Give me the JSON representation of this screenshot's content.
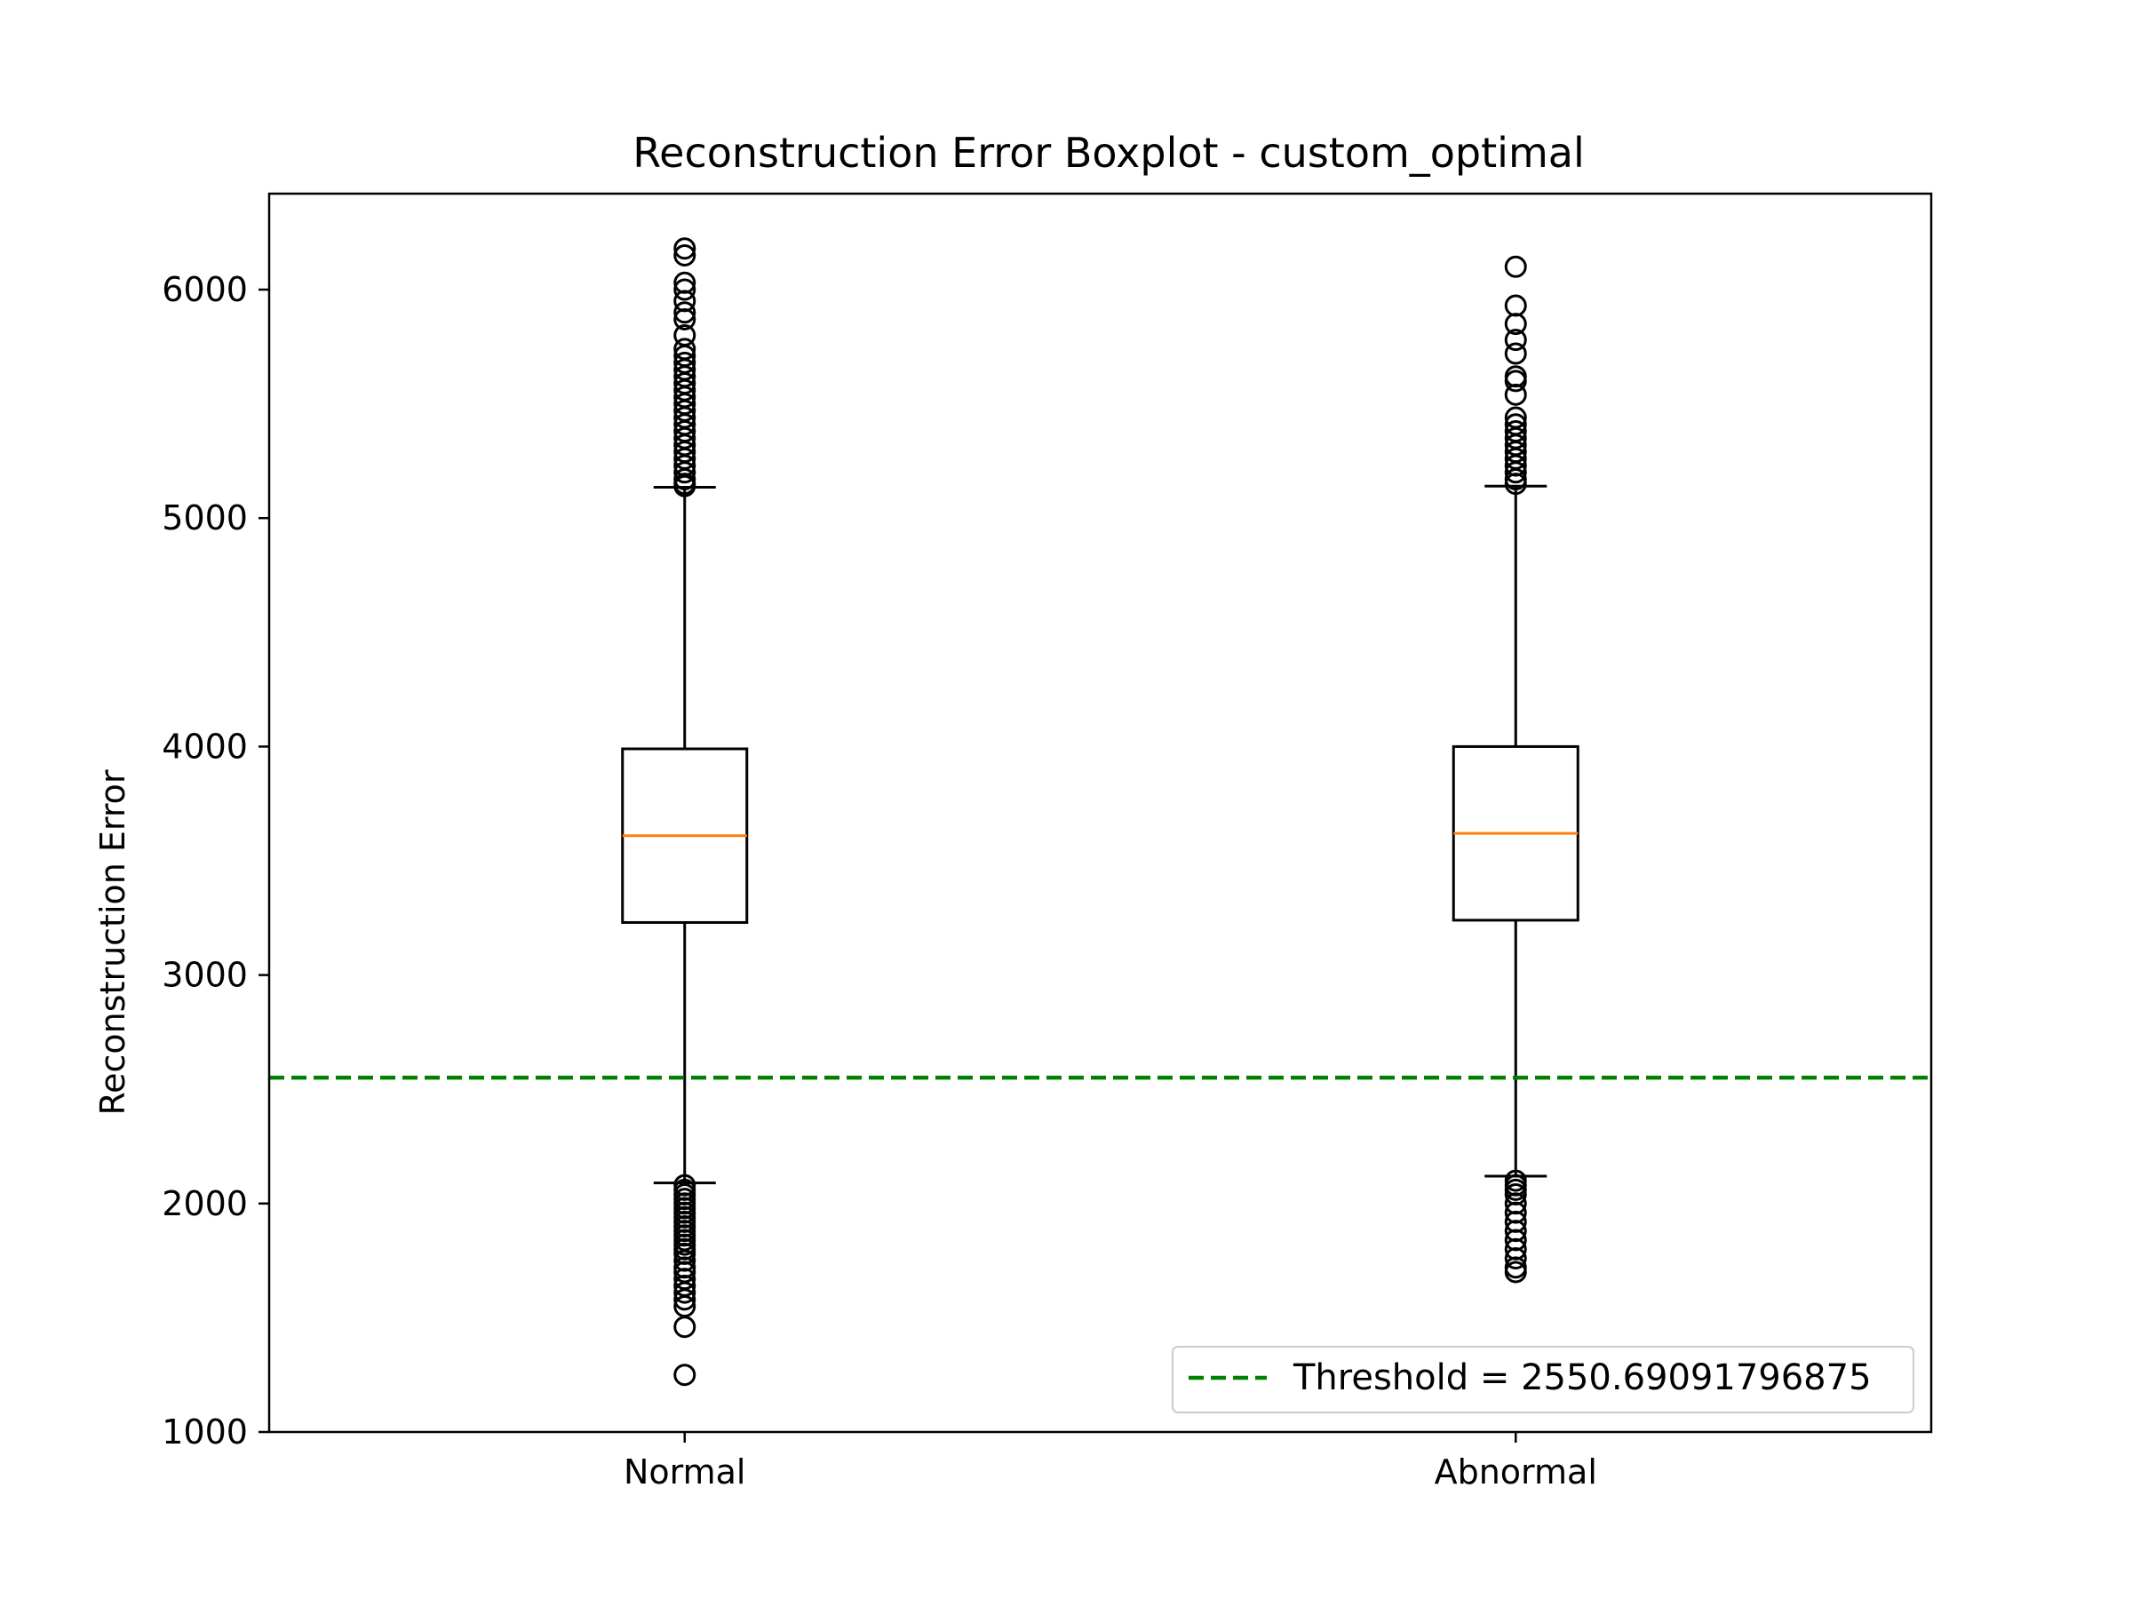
{
  "chart_data": {
    "type": "boxplot",
    "title": "Reconstruction Error Boxplot - custom_optimal",
    "xlabel": "",
    "ylabel": "Reconstruction Error",
    "ylim": [
      1000,
      6420
    ],
    "yticks": [
      1000,
      2000,
      3000,
      4000,
      5000,
      6000
    ],
    "categories": [
      "Normal",
      "Abnormal"
    ],
    "boxes": [
      {
        "label": "Normal",
        "whisker_low": 2090,
        "q1": 3230,
        "median": 3610,
        "q3": 3990,
        "whisker_high": 5135,
        "outliers_high": [
          5140,
          5150,
          5170,
          5200,
          5230,
          5260,
          5290,
          5320,
          5350,
          5380,
          5410,
          5440,
          5470,
          5500,
          5530,
          5560,
          5590,
          5620,
          5650,
          5680,
          5710,
          5740,
          5800,
          5870,
          5900,
          5950,
          6000,
          6030,
          6150,
          6180
        ],
        "outliers_low": [
          2080,
          2060,
          2040,
          2020,
          2000,
          1980,
          1960,
          1940,
          1920,
          1900,
          1880,
          1860,
          1840,
          1820,
          1800,
          1780,
          1750,
          1720,
          1700,
          1670,
          1640,
          1610,
          1580,
          1550,
          1460,
          1250
        ]
      },
      {
        "label": "Abnormal",
        "whisker_low": 2120,
        "q1": 3240,
        "median": 3620,
        "q3": 4000,
        "whisker_high": 5140,
        "outliers_high": [
          5150,
          5170,
          5200,
          5230,
          5260,
          5290,
          5320,
          5350,
          5380,
          5410,
          5440,
          5540,
          5600,
          5620,
          5720,
          5780,
          5850,
          5930,
          6100
        ],
        "outliers_low": [
          2100,
          2080,
          2060,
          2040,
          2000,
          1960,
          1920,
          1880,
          1840,
          1800,
          1760,
          1720,
          1700
        ]
      }
    ],
    "threshold": {
      "value": 2550.69091796875,
      "color": "#008000",
      "style": "dashed"
    },
    "legend": {
      "position": "lower right",
      "entries": [
        "Threshold = 2550.69091796875"
      ]
    },
    "colors": {
      "median": "#ff7f0e",
      "box": "#000000",
      "threshold": "#008000"
    },
    "grid": false
  }
}
